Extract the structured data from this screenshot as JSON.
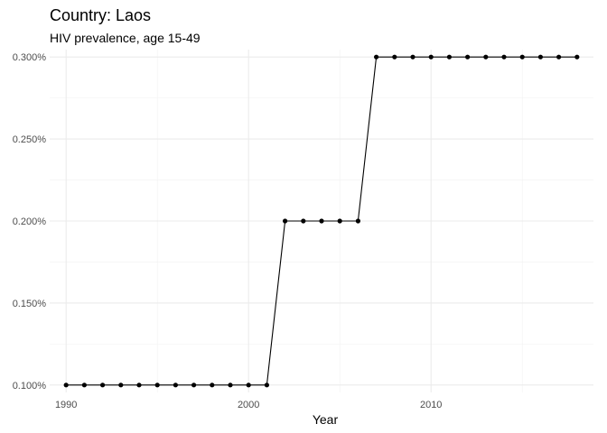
{
  "chart_data": {
    "type": "line",
    "title": "Country: Laos",
    "subtitle": "HIV prevalence, age 15-49",
    "xlabel": "Year",
    "ylabel": "",
    "x": [
      1990,
      1991,
      1992,
      1993,
      1994,
      1995,
      1996,
      1997,
      1998,
      1999,
      2000,
      2001,
      2002,
      2003,
      2004,
      2005,
      2006,
      2007,
      2008,
      2009,
      2010,
      2011,
      2012,
      2013,
      2014,
      2015,
      2016,
      2017,
      2018
    ],
    "series": [
      {
        "values": [
          0.1,
          0.1,
          0.1,
          0.1,
          0.1,
          0.1,
          0.1,
          0.1,
          0.1,
          0.1,
          0.1,
          0.1,
          0.2,
          0.2,
          0.2,
          0.2,
          0.2,
          0.3,
          0.3,
          0.3,
          0.3,
          0.3,
          0.3,
          0.3,
          0.3,
          0.3,
          0.3,
          0.3,
          0.3
        ],
        "color": "#000000"
      }
    ],
    "xlim": [
      1989.1,
      2018.9
    ],
    "ylim": [
      0.0955,
      0.3045
    ],
    "x_ticks": [
      1990,
      2000,
      2010
    ],
    "x_tick_labels": [
      "1990",
      "2000",
      "2010"
    ],
    "y_ticks": [
      0.1,
      0.15,
      0.2,
      0.25,
      0.3
    ],
    "y_tick_labels": [
      "0.100%",
      "0.150%",
      "0.200%",
      "0.250%",
      "0.300%"
    ],
    "x_minor_ticks": [
      1995,
      2005,
      2015
    ],
    "y_minor_ticks": [
      0.125,
      0.175,
      0.225,
      0.275
    ],
    "grid": true,
    "legend": "none",
    "markers": true
  }
}
